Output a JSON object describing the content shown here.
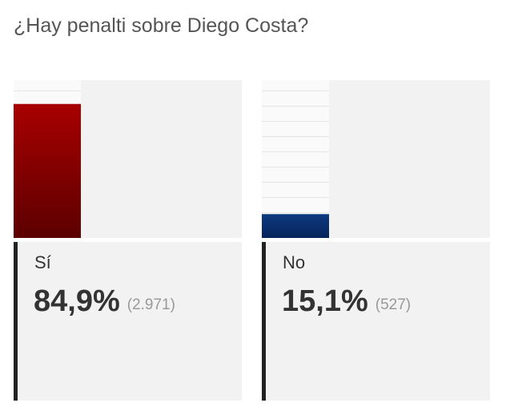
{
  "chart_data": {
    "type": "bar",
    "title": "¿Hay penalti sobre Diego Costa?",
    "categories": [
      "Sí",
      "No"
    ],
    "values": [
      84.9,
      15.1
    ],
    "value_labels": [
      "84,9%",
      "15,1%"
    ],
    "vote_counts": [
      2971,
      527
    ],
    "vote_count_labels": [
      "(2.971)",
      "(527)"
    ],
    "colors": [
      [
        "#a80000",
        "#5c0000"
      ],
      [
        "#0d3a80",
        "#06245a"
      ]
    ],
    "ylim": [
      0,
      100
    ]
  }
}
